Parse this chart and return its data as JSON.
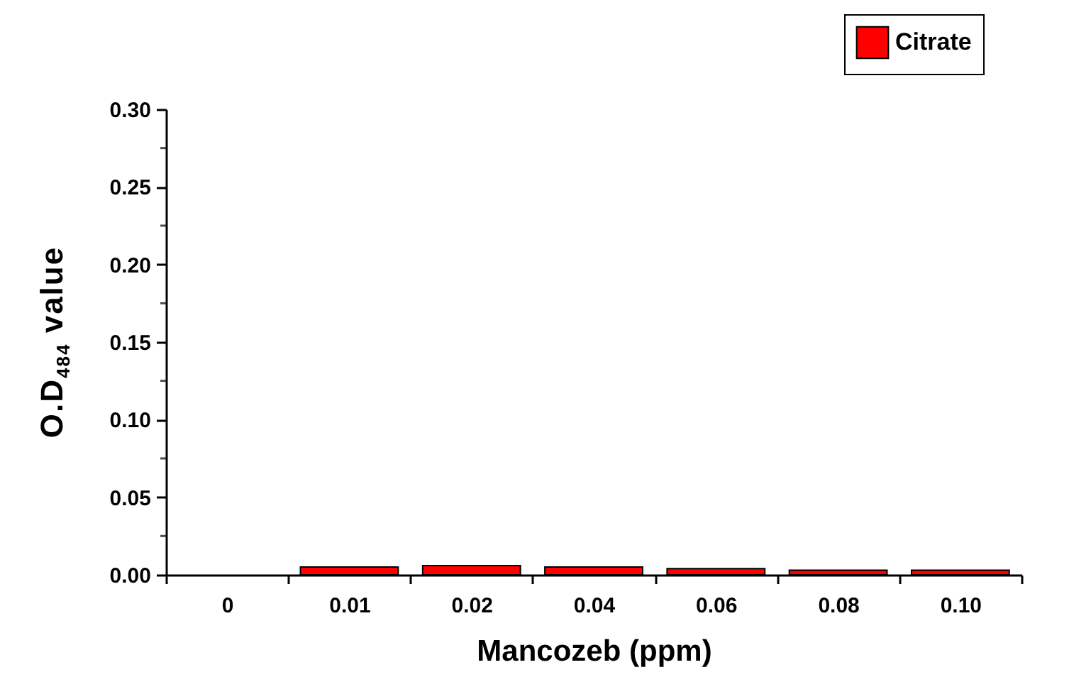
{
  "chart_data": {
    "type": "bar",
    "xlabel": "Mancozeb (ppm)",
    "ylabel": "O.D$_{484}$ value",
    "categories": [
      "0",
      "0.01",
      "0.02",
      "0.04",
      "0.06",
      "0.08",
      "0.10"
    ],
    "series": [
      {
        "name": "Citrate",
        "color": "#ff0000",
        "values": [
          null,
          0.005,
          0.006,
          0.005,
          0.004,
          0.003,
          0.003
        ]
      }
    ],
    "ylim": [
      0,
      0.3
    ],
    "yticks": [
      {
        "value": 0,
        "label": "0.00"
      },
      {
        "value": 0.05,
        "label": "0.05"
      },
      {
        "value": 0.1,
        "label": "0.10"
      },
      {
        "value": 0.15,
        "label": "0.15"
      },
      {
        "value": 0.2,
        "label": "0.20"
      },
      {
        "value": 0.25,
        "label": "0.25"
      },
      {
        "value": 0.3,
        "label": "0.30"
      }
    ],
    "grid": false,
    "legend": "top right"
  }
}
